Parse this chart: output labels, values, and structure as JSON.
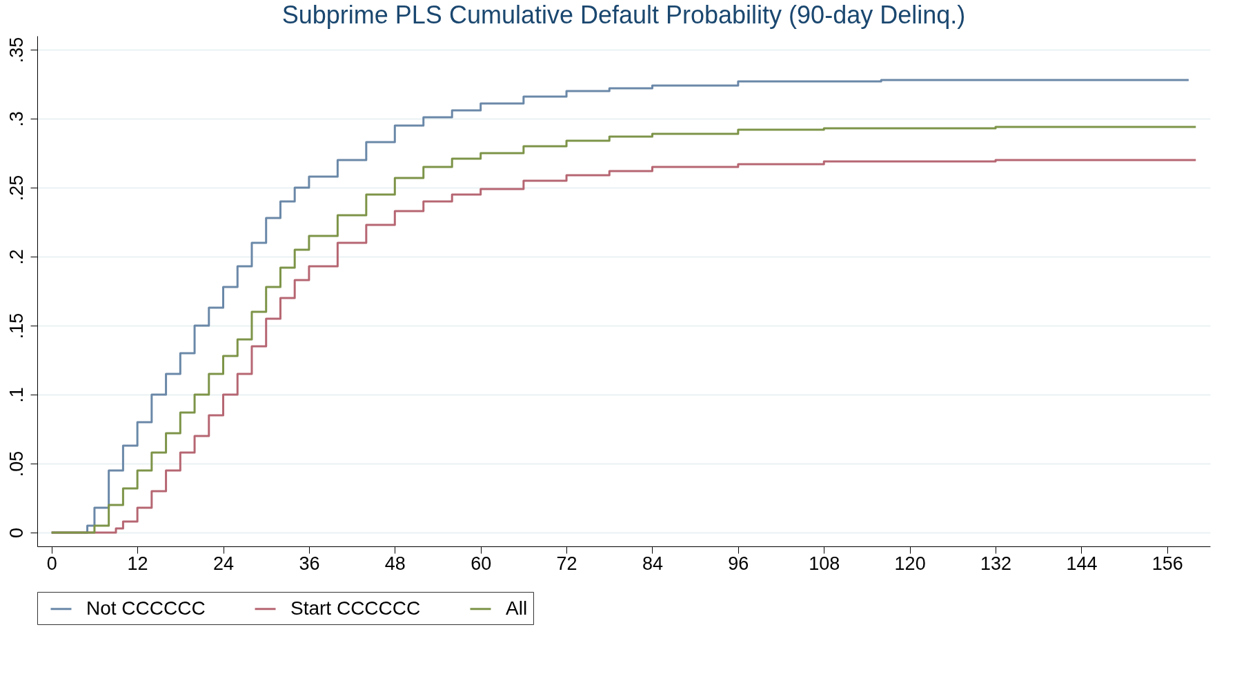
{
  "chart_data": {
    "type": "step",
    "title": "Subprime PLS Cumulative Default Probability (90-day Delinq.)",
    "xlim": [
      -2,
      162
    ],
    "xticks": [
      0,
      12,
      24,
      36,
      48,
      60,
      72,
      84,
      96,
      108,
      120,
      132,
      144,
      156
    ],
    "ylim": [
      -0.01,
      0.36
    ],
    "yticks": [
      {
        "value": 0,
        "label": "0"
      },
      {
        "value": 0.05,
        "label": ".05"
      },
      {
        "value": 0.1,
        "label": ".1"
      },
      {
        "value": 0.15,
        "label": ".15"
      },
      {
        "value": 0.2,
        "label": ".2"
      },
      {
        "value": 0.25,
        "label": ".25"
      },
      {
        "value": 0.3,
        "label": ".3"
      },
      {
        "value": 0.35,
        "label": ".35"
      }
    ],
    "grid": "y",
    "legend": "bottom",
    "series": [
      {
        "name": "Not CCCCCC",
        "color": "#6a88a8",
        "x": [
          0,
          5,
          6,
          8,
          10,
          12,
          14,
          16,
          18,
          20,
          22,
          24,
          26,
          28,
          30,
          32,
          34,
          36,
          40,
          44,
          48,
          52,
          56,
          60,
          66,
          72,
          78,
          84,
          96,
          116,
          159
        ],
        "values": [
          0,
          0.005,
          0.018,
          0.045,
          0.063,
          0.08,
          0.1,
          0.115,
          0.13,
          0.15,
          0.163,
          0.178,
          0.193,
          0.21,
          0.228,
          0.24,
          0.25,
          0.258,
          0.27,
          0.283,
          0.295,
          0.301,
          0.306,
          0.311,
          0.316,
          0.32,
          0.322,
          0.324,
          0.327,
          0.328,
          0.328
        ]
      },
      {
        "name": "Start CCCCCC",
        "color": "#b66672",
        "x": [
          0,
          8,
          9,
          10,
          12,
          14,
          16,
          18,
          20,
          22,
          24,
          26,
          28,
          30,
          32,
          34,
          36,
          40,
          44,
          48,
          52,
          56,
          60,
          66,
          72,
          78,
          84,
          96,
          108,
          132,
          160
        ],
        "values": [
          0,
          0,
          0.003,
          0.008,
          0.018,
          0.03,
          0.045,
          0.058,
          0.07,
          0.085,
          0.1,
          0.115,
          0.135,
          0.155,
          0.17,
          0.183,
          0.193,
          0.21,
          0.223,
          0.233,
          0.24,
          0.245,
          0.249,
          0.255,
          0.259,
          0.262,
          0.265,
          0.267,
          0.269,
          0.27,
          0.27
        ]
      },
      {
        "name": "All",
        "color": "#7d9448",
        "x": [
          0,
          5,
          6,
          8,
          10,
          12,
          14,
          16,
          18,
          20,
          22,
          24,
          26,
          28,
          30,
          32,
          34,
          36,
          40,
          44,
          48,
          52,
          56,
          60,
          66,
          72,
          78,
          84,
          96,
          108,
          132,
          160
        ],
        "values": [
          0,
          0,
          0.005,
          0.02,
          0.032,
          0.045,
          0.058,
          0.072,
          0.087,
          0.1,
          0.115,
          0.128,
          0.14,
          0.16,
          0.178,
          0.192,
          0.205,
          0.215,
          0.23,
          0.245,
          0.257,
          0.265,
          0.271,
          0.275,
          0.28,
          0.284,
          0.287,
          0.289,
          0.292,
          0.293,
          0.294,
          0.294
        ]
      }
    ]
  }
}
